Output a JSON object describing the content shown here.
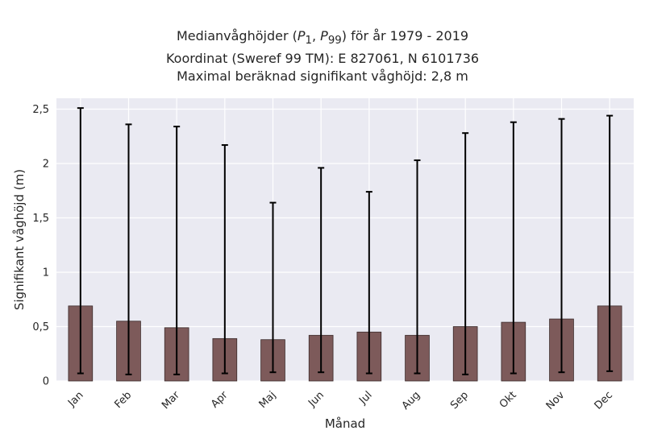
{
  "chart_data": {
    "type": "bar",
    "title_lines": [
      "Medianvåghöjder (P1, P99) för år 1979 - 2019",
      "Koordinat (Sweref 99 TM): E 827061, N 6101736",
      "Maximal beräknad signifikant våghöjd: 2,8 m"
    ],
    "xlabel": "Månad",
    "ylabel": "Signifikant våghöjd (m)",
    "ylim": [
      0,
      2.6
    ],
    "yticks": [
      0,
      0.5,
      1,
      1.5,
      2,
      2.5
    ],
    "ytick_labels": [
      "0",
      "0,5",
      "1",
      "1,5",
      "2",
      "2,5"
    ],
    "grid": true,
    "categories": [
      "Jan",
      "Feb",
      "Mar",
      "Apr",
      "Maj",
      "Jun",
      "Jul",
      "Aug",
      "Sep",
      "Okt",
      "Nov",
      "Dec"
    ],
    "series": [
      {
        "values": [
          0.69,
          0.55,
          0.49,
          0.39,
          0.38,
          0.42,
          0.45,
          0.42,
          0.5,
          0.54,
          0.57,
          0.69
        ],
        "error_low": [
          0.07,
          0.06,
          0.06,
          0.07,
          0.08,
          0.08,
          0.07,
          0.07,
          0.06,
          0.07,
          0.08,
          0.09
        ],
        "error_high": [
          2.51,
          2.36,
          2.34,
          2.17,
          1.64,
          1.96,
          1.74,
          2.03,
          2.28,
          2.38,
          2.41,
          2.44
        ]
      }
    ],
    "colors": {
      "bar_fill": "#7d5a5a",
      "bar_edge": "#3a2a2a",
      "error_bar": "#000000",
      "plot_background": "#eaeaf2",
      "grid": "#ffffff"
    }
  }
}
